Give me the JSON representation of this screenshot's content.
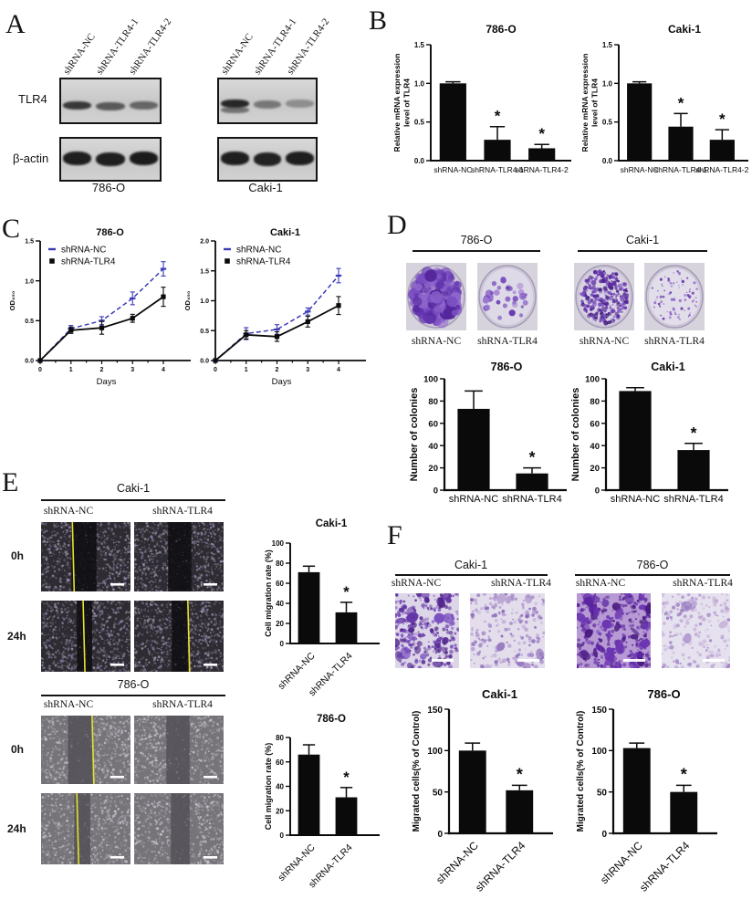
{
  "panels": {
    "A": {
      "label": "A",
      "protein_rows": [
        "TLR4",
        "β-actin"
      ],
      "lane_labels": [
        "shRNA-NC",
        "shRNA-TLR4-1",
        "shRNA-TLR4-2"
      ],
      "groups": [
        {
          "cell_line": "786-O",
          "tlr4_bands": [
            0.8,
            0.62,
            0.55
          ],
          "actin_bands": [
            0.95,
            0.95,
            0.97
          ]
        },
        {
          "cell_line": "Caki-1",
          "tlr4_bands": [
            0.9,
            0.45,
            0.32
          ],
          "actin_bands": [
            0.95,
            0.93,
            0.95
          ]
        }
      ]
    },
    "B": {
      "label": "B"
    },
    "C": {
      "label": "C"
    },
    "D": {
      "label": "D",
      "groups": [
        {
          "cell_line": "786-O",
          "images": [
            {
              "label": "shRNA-NC",
              "density": "dense",
              "count": 170,
              "dot_min": 2.5,
              "dot_max": 7.5,
              "field": "#c9bcdc",
              "colors": [
                "#7a4fc0",
                "#6234ae",
                "#8d65cc",
                "#55269c"
              ]
            },
            {
              "label": "shRNA-TLR4",
              "density": "sparse",
              "count": 34,
              "dot_min": 1.6,
              "dot_max": 4.6,
              "field": "#ded9e7",
              "colors": [
                "#7a4fc0",
                "#6234ae",
                "#9d79d2"
              ]
            }
          ]
        },
        {
          "cell_line": "Caki-1",
          "images": [
            {
              "label": "shRNA-NC",
              "density": "dense",
              "count": 260,
              "dot_min": 0.7,
              "dot_max": 2.6,
              "field": "#d8d2e3",
              "colors": [
                "#5c2ba2",
                "#7a4fc0",
                "#44207e"
              ]
            },
            {
              "label": "shRNA-TLR4",
              "density": "sparse",
              "count": 80,
              "dot_min": 0.5,
              "dot_max": 1.7,
              "field": "#e2dee9",
              "colors": [
                "#6a3ab0",
                "#8d65cc"
              ]
            }
          ]
        }
      ]
    },
    "E": {
      "label": "E",
      "row_labels": [
        "0h",
        "24h"
      ],
      "sections": [
        {
          "cell_line": "Caki-1",
          "col_labels": [
            "shRNA-NC",
            "shRNA-TLR4"
          ],
          "base": "#2e2c32",
          "gap_color": "#111014",
          "speckles": [
            "#8d8798",
            "#a79fb2",
            "#6f6a7c",
            "#9f8fc0"
          ],
          "images": [
            {
              "row": "0h",
              "col": "shRNA-NC",
              "gap": [
                0.34,
                0.62
              ],
              "yellow": 0.35
            },
            {
              "row": "0h",
              "col": "shRNA-TLR4",
              "gap": [
                0.38,
                0.64
              ],
              "yellow": null
            },
            {
              "row": "24h",
              "col": "shRNA-NC",
              "gap": [
                0.4,
                0.57
              ],
              "yellow": 0.47
            },
            {
              "row": "24h",
              "col": "shRNA-TLR4",
              "gap": [
                0.42,
                0.6
              ],
              "yellow": 0.6
            }
          ]
        },
        {
          "cell_line": "786-O",
          "col_labels": [
            "shRNA-NC",
            "shRNA-TLR4"
          ],
          "base": "#767479",
          "gap_color": "#56545a",
          "speckles": [
            "#b5b2ba",
            "#d0cdd5",
            "#97939b",
            "#c3bfc9"
          ],
          "images": [
            {
              "row": "0h",
              "col": "shRNA-NC",
              "gap": [
                0.3,
                0.58
              ],
              "yellow": 0.57
            },
            {
              "row": "0h",
              "col": "shRNA-TLR4",
              "gap": [
                0.36,
                0.62
              ],
              "yellow": null
            },
            {
              "row": "24h",
              "col": "shRNA-NC",
              "gap": [
                0.37,
                0.55
              ],
              "yellow": 0.4
            },
            {
              "row": "24h",
              "col": "shRNA-TLR4",
              "gap": [
                0.41,
                0.62
              ],
              "yellow": null
            }
          ]
        }
      ]
    },
    "F": {
      "label": "F",
      "groups": [
        {
          "cell_line": "Caki-1",
          "col_labels": [
            "shRNA-NC",
            "shRNA-TLR4"
          ],
          "images": [
            {
              "label": "shRNA-NC",
              "density": "dense",
              "bg": "#ddd5e8",
              "count": 260,
              "blobs": 30,
              "colors": [
                "#6233a6",
                "#7a4fc0",
                "#50248c"
              ]
            },
            {
              "label": "shRNA-TLR4",
              "density": "moderate",
              "bg": "#e3ddec",
              "count": 210,
              "blobs": 8,
              "colors": [
                "#9a7cc2",
                "#8463b4",
                "#b49ad0"
              ]
            }
          ]
        },
        {
          "cell_line": "786-O",
          "col_labels": [
            "shRNA-NC",
            "shRNA-TLR4"
          ],
          "images": [
            {
              "label": "shRNA-NC",
              "density": "very dense",
              "bg": "#b79ad4",
              "count": 300,
              "blobs": 52,
              "colors": [
                "#5a23a0",
                "#47187e",
                "#6c35b2"
              ]
            },
            {
              "label": "shRNA-TLR4",
              "density": "light",
              "bg": "#e6e1ee",
              "count": 190,
              "blobs": 5,
              "colors": [
                "#b49ad0",
                "#9a7cc2",
                "#c7b2da"
              ]
            }
          ]
        }
      ]
    }
  },
  "chart_data": [
    {
      "id": "B-786O",
      "type": "bar",
      "title": "786-O",
      "ylabel": "Relative mRNA expression\nlevel of TLR4",
      "ylim": [
        0,
        1.5
      ],
      "yticks": [
        "0.0",
        "0.5",
        "1.0",
        "1.5"
      ],
      "categories": [
        "shRNA-NC",
        "shRNA-TLR4-1",
        "shRNA-TLR4-2"
      ],
      "values": [
        1.0,
        0.27,
        0.16
      ],
      "errors": [
        0.02,
        0.17,
        0.05
      ],
      "sig": [
        "",
        "*",
        "*"
      ]
    },
    {
      "id": "B-Caki1",
      "type": "bar",
      "title": "Caki-1",
      "ylabel": "Relative mRNA expression\nlevel of TLR4",
      "ylim": [
        0,
        1.5
      ],
      "yticks": [
        "0.0",
        "0.5",
        "1.0",
        "1.5"
      ],
      "categories": [
        "shRNA-NC",
        "shRNA-TLR4-1",
        "shRNA-TLR4-2"
      ],
      "values": [
        1.0,
        0.44,
        0.27
      ],
      "errors": [
        0.02,
        0.17,
        0.13
      ],
      "sig": [
        "",
        "*",
        "*"
      ]
    },
    {
      "id": "C-786O",
      "type": "line",
      "title": "786-O",
      "ylabel": "OD₄₅₀",
      "xlabel": "Days",
      "x": [
        0,
        1,
        2,
        3,
        4
      ],
      "ylim": [
        0,
        1.5
      ],
      "yticks": [
        "0.0",
        "0.5",
        "1.0",
        "1.5"
      ],
      "legend_position": "top-left",
      "series": [
        {
          "name": "shRNA-NC",
          "color": "#3b3bb8",
          "dashed": true,
          "marker": "dash",
          "values": [
            0,
            0.4,
            0.5,
            0.78,
            1.15
          ],
          "errors": [
            0,
            0.04,
            0.05,
            0.08,
            0.09
          ]
        },
        {
          "name": "shRNA-TLR4",
          "color": "#0a0a0a",
          "dashed": false,
          "marker": "square",
          "values": [
            0,
            0.38,
            0.41,
            0.53,
            0.8
          ],
          "errors": [
            0,
            0.04,
            0.08,
            0.05,
            0.12
          ]
        }
      ]
    },
    {
      "id": "C-Caki1",
      "type": "line",
      "title": "Caki-1",
      "ylabel": "OD₄₅₀",
      "xlabel": "Days",
      "x": [
        0,
        1,
        2,
        3,
        4
      ],
      "ylim": [
        0,
        2.0
      ],
      "yticks": [
        "0.0",
        "0.5",
        "1.0",
        "1.5",
        "2.0"
      ],
      "legend_position": "top-left",
      "series": [
        {
          "name": "shRNA-NC",
          "color": "#3b3bb8",
          "dashed": true,
          "marker": "dash",
          "values": [
            0,
            0.45,
            0.52,
            0.82,
            1.42
          ],
          "errors": [
            0,
            0.1,
            0.08,
            0.06,
            0.12
          ]
        },
        {
          "name": "shRNA-TLR4",
          "color": "#0a0a0a",
          "dashed": false,
          "marker": "square",
          "values": [
            0,
            0.43,
            0.4,
            0.65,
            0.92
          ],
          "errors": [
            0,
            0.07,
            0.08,
            0.09,
            0.15
          ]
        }
      ]
    },
    {
      "id": "D-786O",
      "type": "bar",
      "title": "786-O",
      "ylabel": "Number of colonies",
      "ylim": [
        0,
        100
      ],
      "yticks": [
        "0",
        "20",
        "40",
        "60",
        "80",
        "100"
      ],
      "categories": [
        "shRNA-NC",
        "shRNA-TLR4"
      ],
      "values": [
        73,
        15
      ],
      "errors": [
        16,
        5
      ],
      "sig": [
        "",
        "*"
      ]
    },
    {
      "id": "D-Caki1",
      "type": "bar",
      "title": "Caki-1",
      "ylabel": "Number of colonies",
      "ylim": [
        0,
        100
      ],
      "yticks": [
        "0",
        "20",
        "40",
        "60",
        "80",
        "100"
      ],
      "categories": [
        "shRNA-NC",
        "shRNA-TLR4"
      ],
      "values": [
        89,
        36
      ],
      "errors": [
        3,
        6
      ],
      "sig": [
        "",
        "*"
      ]
    },
    {
      "id": "E-Caki1",
      "type": "bar",
      "title": "Caki-1",
      "ylabel": "Cell migration rate (%)",
      "ylim": [
        0,
        100
      ],
      "yticks": [
        "0",
        "20",
        "40",
        "60",
        "80",
        "100"
      ],
      "categories": [
        "shRNA-NC",
        "shRNA-TLR4"
      ],
      "values": [
        71,
        31
      ],
      "errors": [
        6,
        10
      ],
      "sig": [
        "",
        "*"
      ]
    },
    {
      "id": "E-786O",
      "type": "bar",
      "title": "786-O",
      "ylabel": "Cell migration rate (%)",
      "ylim": [
        0,
        80
      ],
      "yticks": [
        "0",
        "20",
        "40",
        "60",
        "80"
      ],
      "categories": [
        "shRNA-NC",
        "shRNA-TLR4"
      ],
      "values": [
        66,
        31
      ],
      "errors": [
        8,
        8
      ],
      "sig": [
        "",
        "*"
      ]
    },
    {
      "id": "F-Caki1",
      "type": "bar",
      "title": "Caki-1",
      "ylabel": "Migrated cells(% of Control)",
      "ylim": [
        0,
        150
      ],
      "yticks": [
        "0",
        "50",
        "100",
        "150"
      ],
      "categories": [
        "shRNA-NC",
        "shRNA-TLR4"
      ],
      "values": [
        100,
        52
      ],
      "errors": [
        9,
        6
      ],
      "sig": [
        "",
        "*"
      ]
    },
    {
      "id": "F-786O",
      "type": "bar",
      "title": "786-O",
      "ylabel": "Migrated cells(% of Control)",
      "ylim": [
        0,
        150
      ],
      "yticks": [
        "0",
        "50",
        "100",
        "150"
      ],
      "categories": [
        "shRNA-NC",
        "shRNA-TLR4"
      ],
      "values": [
        103,
        50
      ],
      "errors": [
        6,
        8
      ],
      "sig": [
        "",
        "*"
      ]
    }
  ]
}
